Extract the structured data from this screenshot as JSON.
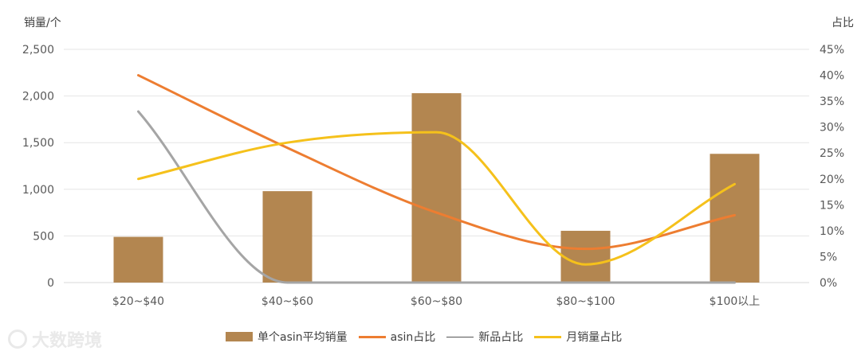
{
  "chart_data": {
    "type": "bar",
    "categories": [
      "$20~$40",
      "$40~$60",
      "$60~$80",
      "$80~$100",
      "$100以上"
    ],
    "y_left": {
      "title": "销量/个",
      "ticks": [
        "0",
        "500",
        "1,000",
        "1,500",
        "2,000",
        "2,500"
      ],
      "min": 0,
      "max": 2500
    },
    "y_right": {
      "title": "占比",
      "ticks": [
        "0%",
        "5%",
        "10%",
        "15%",
        "20%",
        "25%",
        "30%",
        "35%",
        "40%",
        "45%"
      ],
      "min": 0,
      "max": 45
    },
    "grid": true,
    "legend_placement": "bottom",
    "series": [
      {
        "name": "单个asin平均销量",
        "type": "bar",
        "axis": "left",
        "color": "#b38650",
        "values": [
          490,
          980,
          2030,
          555,
          1380
        ]
      },
      {
        "name": "asin占比",
        "type": "line",
        "axis": "right",
        "color": "#ed7d31",
        "values": [
          40,
          26,
          13.5,
          6.5,
          13
        ]
      },
      {
        "name": "新品占比",
        "type": "line",
        "axis": "right",
        "color": "#a5a5a5",
        "values": [
          33,
          0,
          0,
          0,
          0
        ]
      },
      {
        "name": "月销量占比",
        "type": "line",
        "axis": "right",
        "color": "#f5c11b",
        "values": [
          20,
          27,
          29,
          3.5,
          19
        ]
      }
    ]
  },
  "watermark": {
    "text": "大数跨境"
  }
}
